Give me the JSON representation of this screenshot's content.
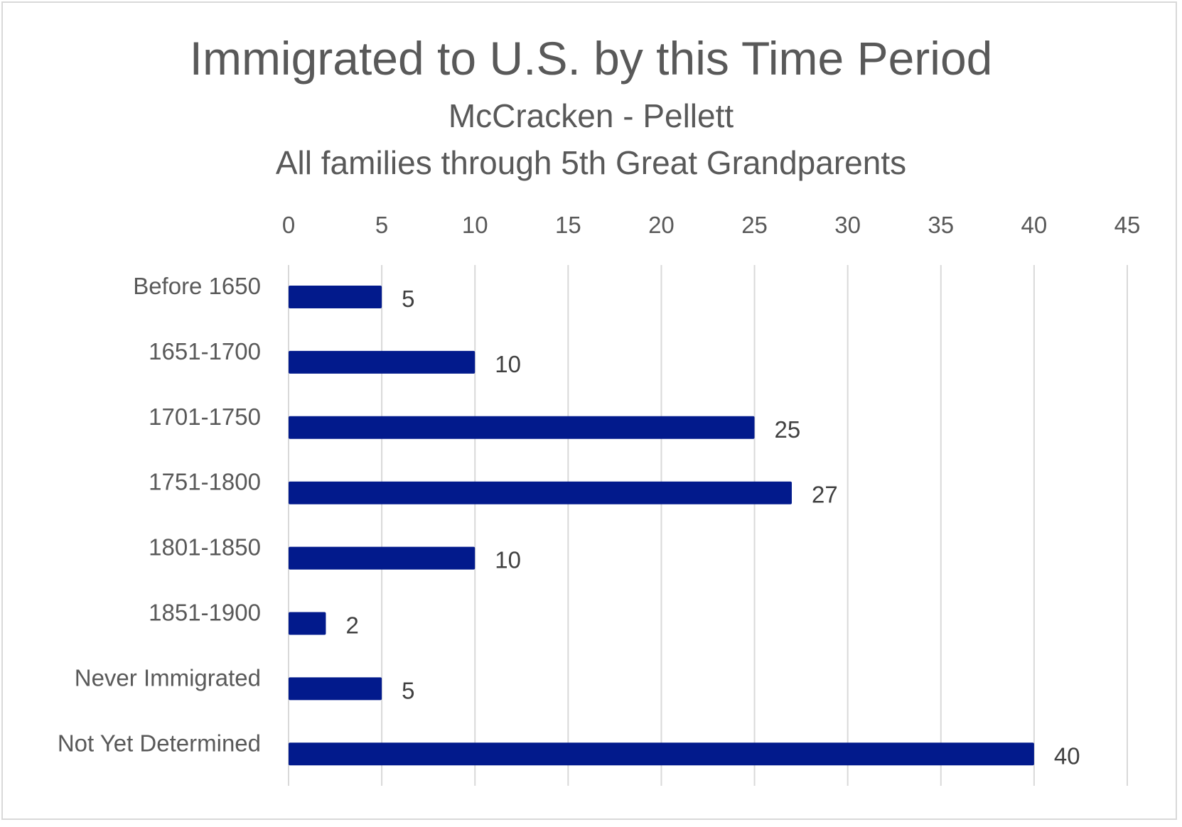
{
  "chart_data": {
    "type": "bar",
    "orientation": "horizontal",
    "title": "Immigrated to U.S. by this Time Period",
    "subtitles": [
      "McCracken - Pellett",
      "All families through 5th Great Grandparents"
    ],
    "xlabel": "",
    "ylabel": "",
    "categories": [
      "Before 1650",
      "1651-1700",
      "1701-1750",
      "1751-1800",
      "1801-1850",
      "1851-1900",
      "Never Immigrated",
      "Not Yet Determined"
    ],
    "values": [
      5,
      10,
      25,
      27,
      10,
      2,
      5,
      40
    ],
    "data_labels": [
      "5",
      "10",
      "25",
      "27",
      "10",
      "2",
      "5",
      "40"
    ],
    "xlim": [
      0,
      45
    ],
    "x_ticks": [
      0,
      5,
      10,
      15,
      20,
      25,
      30,
      35,
      40,
      45
    ],
    "x_tick_labels": [
      "0",
      "5",
      "10",
      "15",
      "20",
      "25",
      "30",
      "35",
      "40",
      "45"
    ],
    "x_axis_position": "top",
    "grid": "vertical",
    "legend": "none",
    "colors": {
      "bar": "#021a8c",
      "grid": "#d9d9d9",
      "text": "#595959",
      "data_label": "#404040"
    }
  }
}
